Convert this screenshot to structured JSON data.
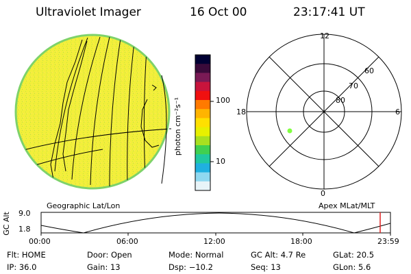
{
  "header": {
    "instrument": "Ultraviolet Imager",
    "date": "16 Oct 00",
    "time": "23:17:41 UT"
  },
  "left_panel": {
    "caption": "Geographic Lat/Lon",
    "disk_color": "#f2ef3a",
    "rim_color": "#7ed26a"
  },
  "colorbar": {
    "unit_label": "photon cm⁻²s⁻¹",
    "ticks": [
      {
        "label": "100",
        "value": 100
      },
      {
        "label": "10",
        "value": 10
      }
    ],
    "colors_top_to_bottom": [
      "#000033",
      "#3a0a3a",
      "#7a1a55",
      "#c8143c",
      "#f01010",
      "#ff7a00",
      "#ffb400",
      "#ffe000",
      "#e8f000",
      "#a8e020",
      "#40d050",
      "#20c8a0",
      "#20b0e0",
      "#90d8f0",
      "#e8f4f8"
    ]
  },
  "polar_panel": {
    "caption": "Apex MLat/MLT",
    "mlt_labels": {
      "top": "12",
      "left": "18",
      "right": "6",
      "bottom": "0"
    },
    "lat_labels": [
      "60",
      "70",
      "80"
    ],
    "spot_color": "#80ff40"
  },
  "gc_alt_plot": {
    "axis_label": "GC Alt",
    "ymax_label": "9.0",
    "ymin_label": "1.8",
    "x_ticks": [
      "00:00",
      "06:00",
      "12:00",
      "18:00",
      "23:59"
    ],
    "marker_color": "#e02020"
  },
  "status": {
    "flt": {
      "label": "Flt:",
      "value": "HOME"
    },
    "ip": {
      "label": "IP:",
      "value": "36.0"
    },
    "door": {
      "label": "Door:",
      "value": "Open"
    },
    "gain": {
      "label": "Gain:",
      "value": "13"
    },
    "mode": {
      "label": "Mode:",
      "value": "Normal"
    },
    "dsp": {
      "label": "Dsp:",
      "value": "−10.2"
    },
    "gcalt": {
      "label": "GC Alt:",
      "value": "4.7 Re"
    },
    "seq": {
      "label": "Seq:",
      "value": "13"
    },
    "glat": {
      "label": "GLat:",
      "value": "20.5"
    },
    "glon": {
      "label": "GLon:",
      "value": "5.6"
    }
  }
}
